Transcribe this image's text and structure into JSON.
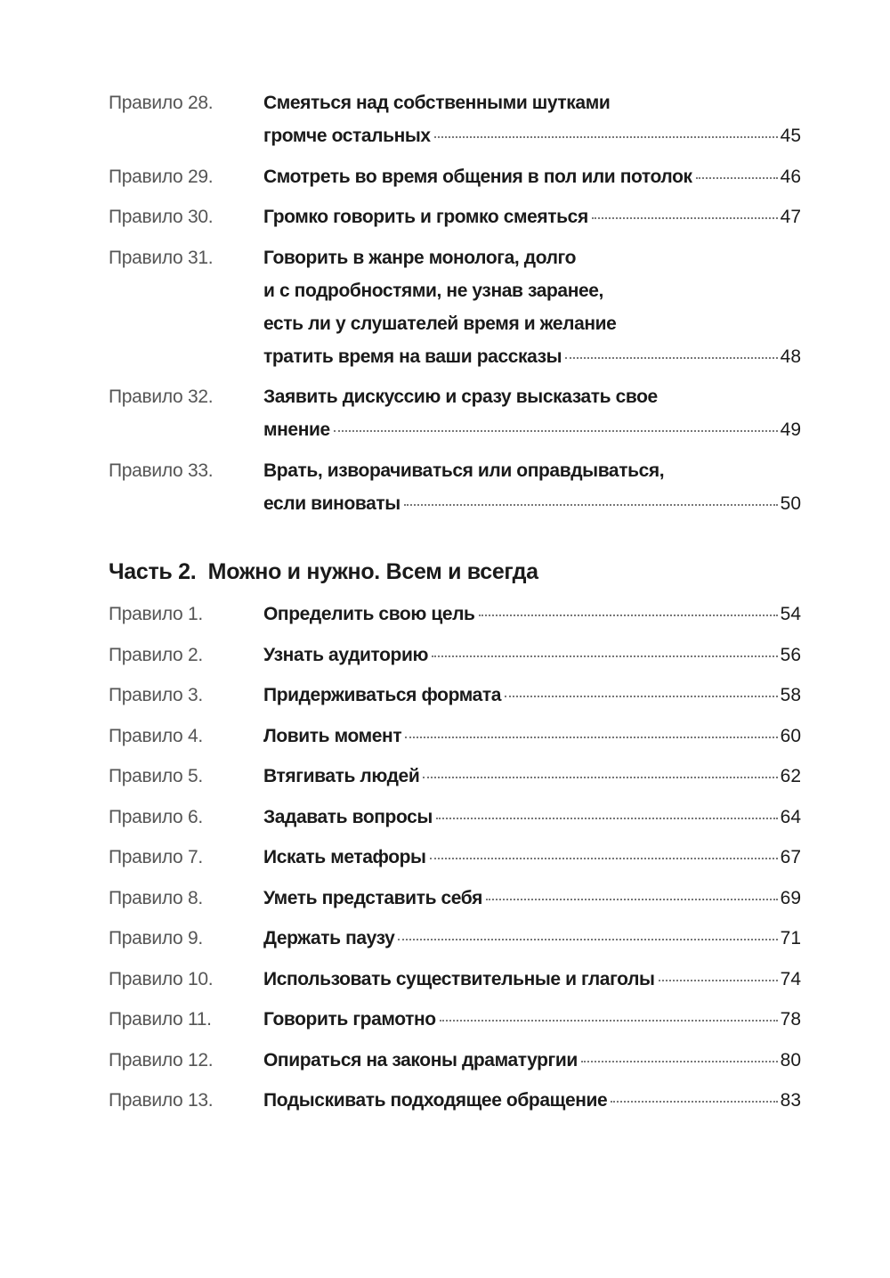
{
  "part1_entries": [
    {
      "label": "Правило 28.",
      "lines": [
        "Смеяться над собственными шутками",
        "громче остальных"
      ],
      "page": "45"
    },
    {
      "label": "Правило 29.",
      "lines": [
        "Смотреть во время общения в пол или потолок"
      ],
      "page": "46"
    },
    {
      "label": "Правило 30.",
      "lines": [
        "Громко говорить и громко смеяться"
      ],
      "page": "47"
    },
    {
      "label": "Правило 31.",
      "lines": [
        "Говорить в жанре монолога, долго",
        "и с подробностями, не узнав заранее,",
        "есть ли у слушателей время и желание",
        "тратить время на ваши рассказы"
      ],
      "page": "48"
    },
    {
      "label": "Правило 32.",
      "lines": [
        "Заявить дискуссию и сразу высказать свое",
        "мнение"
      ],
      "page": "49"
    },
    {
      "label": "Правило 33.",
      "lines": [
        "Врать, изворачиваться или оправдываться,",
        "если виноваты"
      ],
      "page": "50"
    }
  ],
  "part2": {
    "heading": "Часть 2.  Можно и нужно. Всем и всегда",
    "entries": [
      {
        "label": "Правило 1.",
        "lines": [
          "Определить свою цель"
        ],
        "page": "54"
      },
      {
        "label": "Правило 2.",
        "lines": [
          "Узнать аудиторию"
        ],
        "page": "56"
      },
      {
        "label": "Правило 3.",
        "lines": [
          "Придерживаться формата"
        ],
        "page": "58"
      },
      {
        "label": "Правило 4.",
        "lines": [
          "Ловить момент"
        ],
        "page": "60"
      },
      {
        "label": "Правило 5.",
        "lines": [
          "Втягивать людей"
        ],
        "page": "62"
      },
      {
        "label": "Правило 6.",
        "lines": [
          "Задавать вопросы"
        ],
        "page": "64"
      },
      {
        "label": "Правило 7.",
        "lines": [
          "Искать метафоры"
        ],
        "page": "67"
      },
      {
        "label": "Правило 8.",
        "lines": [
          "Уметь представить себя"
        ],
        "page": "69"
      },
      {
        "label": "Правило 9.",
        "lines": [
          "Держать паузу"
        ],
        "page": "71"
      },
      {
        "label": "Правило 10.",
        "lines": [
          "Использовать существительные и глаголы"
        ],
        "page": "74"
      },
      {
        "label": "Правило 11.",
        "lines": [
          "Говорить грамотно"
        ],
        "page": "78"
      },
      {
        "label": "Правило 12.",
        "lines": [
          "Опираться на законы драматургии"
        ],
        "page": "80"
      },
      {
        "label": "Правило 13.",
        "lines": [
          "Подыскивать подходящее обращение"
        ],
        "page": "83"
      }
    ]
  }
}
